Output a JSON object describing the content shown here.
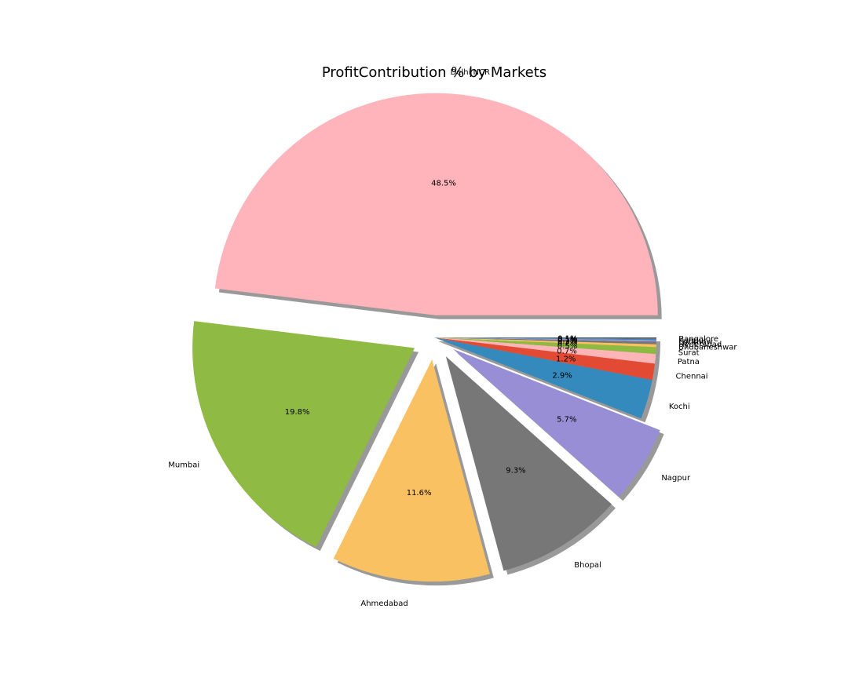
{
  "chart_data": {
    "type": "pie",
    "title": "ProfitContribution % by Markets",
    "start_angle_deg": 0,
    "direction": "counterclockwise",
    "shadow": true,
    "slices": [
      {
        "label": "Delhi NCR",
        "value": 48.5,
        "pct_label": "48.5%",
        "color": "#ffb3ba",
        "explode": true
      },
      {
        "label": "Mumbai",
        "value": 19.8,
        "pct_label": "19.8%",
        "color": "#8fba43",
        "explode": true
      },
      {
        "label": "Ahmedabad",
        "value": 11.6,
        "pct_label": "11.6%",
        "color": "#fac162",
        "explode": true
      },
      {
        "label": "Bhopal",
        "value": 9.3,
        "pct_label": "9.3%",
        "color": "#777777",
        "explode": true
      },
      {
        "label": "Nagpur",
        "value": 5.7,
        "pct_label": "5.7%",
        "color": "#988ed5",
        "explode": true
      },
      {
        "label": "Kochi",
        "value": 2.9,
        "pct_label": "2.9%",
        "color": "#348abd",
        "explode": false
      },
      {
        "label": "Chennai",
        "value": 1.2,
        "pct_label": "1.2%",
        "color": "#e24a33",
        "explode": false
      },
      {
        "label": "Patna",
        "value": 0.7,
        "pct_label": "0.7%",
        "color": "#ffb5b8",
        "explode": false
      },
      {
        "label": "Surat",
        "value": 0.5,
        "pct_label": "0.5%",
        "color": "#8eba42",
        "explode": false
      },
      {
        "label": "Bhubaneshwar",
        "value": 0.2,
        "pct_label": "0.2%",
        "color": "#fbc15e",
        "explode": false
      },
      {
        "label": "Hyderabad",
        "value": 0.2,
        "pct_label": "0.2%",
        "color": "#777777",
        "explode": false
      },
      {
        "label": "Lucknow",
        "value": 0.1,
        "pct_label": "0.1%",
        "color": "#988ed5",
        "explode": false
      },
      {
        "label": "Kanpur",
        "value": 0.1,
        "pct_label": "0.1%",
        "color": "#348abd",
        "explode": false
      },
      {
        "label": "Bangalore",
        "value": 0.1,
        "pct_label": "0.1%",
        "color": "#555555",
        "explode": false
      }
    ]
  }
}
